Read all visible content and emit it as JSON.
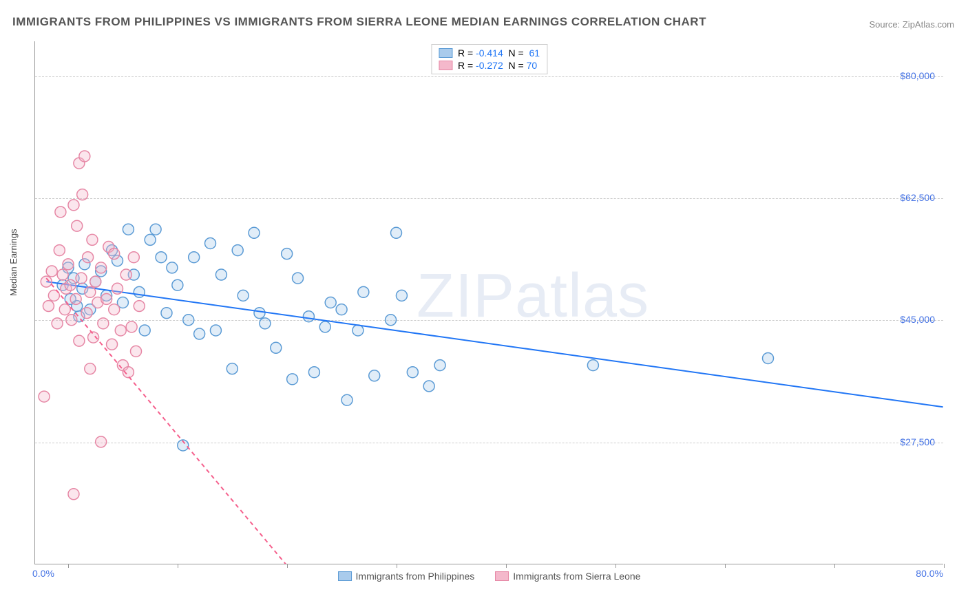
{
  "title": "IMMIGRANTS FROM PHILIPPINES VS IMMIGRANTS FROM SIERRA LEONE MEDIAN EARNINGS CORRELATION CHART",
  "source": "Source: ZipAtlas.com",
  "y_axis_label": "Median Earnings",
  "watermark": "ZIPatlas",
  "chart": {
    "type": "scatter",
    "x_min": -3,
    "x_max": 80,
    "x_label_min": "0.0%",
    "x_label_max": "80.0%",
    "y_min": 10000,
    "y_max": 85000,
    "y_ticks": [
      27500,
      45000,
      62500,
      80000
    ],
    "y_tick_labels": [
      "$27,500",
      "$45,000",
      "$62,500",
      "$80,000"
    ],
    "x_ticks": [
      0,
      10,
      20,
      30,
      40,
      50,
      60,
      70,
      80
    ],
    "gridline_color": "#cccccc",
    "background_color": "#ffffff",
    "axis_color": "#999999",
    "tick_label_color": "#4472e4",
    "marker_radius": 8,
    "marker_stroke_width": 1.5,
    "marker_fill_opacity": 0.35,
    "trendline_width": 2
  },
  "series": [
    {
      "name": "Immigrants from Philippines",
      "color_stroke": "#5b9bd5",
      "color_fill": "#a9cbec",
      "trendline_color": "#2176f5",
      "trendline_dash": "none",
      "R": "-0.414",
      "N": "61",
      "trendline": {
        "x1": -2,
        "y1": 50500,
        "x2": 80,
        "y2": 32500
      },
      "points": [
        [
          -0.5,
          50000
        ],
        [
          0,
          52500
        ],
        [
          0.2,
          48000
        ],
        [
          0.5,
          51000
        ],
        [
          0.8,
          47000
        ],
        [
          1,
          45500
        ],
        [
          1.3,
          49500
        ],
        [
          1.5,
          53000
        ],
        [
          2,
          46500
        ],
        [
          2.5,
          50500
        ],
        [
          3,
          52000
        ],
        [
          3.5,
          48500
        ],
        [
          4,
          55000
        ],
        [
          4.5,
          53500
        ],
        [
          5,
          47500
        ],
        [
          5.5,
          58000
        ],
        [
          6,
          51500
        ],
        [
          6.5,
          49000
        ],
        [
          7,
          43500
        ],
        [
          7.5,
          56500
        ],
        [
          8,
          58000
        ],
        [
          8.5,
          54000
        ],
        [
          9,
          46000
        ],
        [
          9.5,
          52500
        ],
        [
          10,
          50000
        ],
        [
          10.5,
          27000
        ],
        [
          11,
          45000
        ],
        [
          11.5,
          54000
        ],
        [
          12,
          43000
        ],
        [
          13,
          56000
        ],
        [
          13.5,
          43500
        ],
        [
          14,
          51500
        ],
        [
          15,
          38000
        ],
        [
          15.5,
          55000
        ],
        [
          16,
          48500
        ],
        [
          17,
          57500
        ],
        [
          17.5,
          46000
        ],
        [
          18,
          44500
        ],
        [
          19,
          41000
        ],
        [
          20,
          54500
        ],
        [
          20.5,
          36500
        ],
        [
          21,
          51000
        ],
        [
          22,
          45500
        ],
        [
          22.5,
          37500
        ],
        [
          23.5,
          44000
        ],
        [
          24,
          47500
        ],
        [
          25,
          46500
        ],
        [
          25.5,
          33500
        ],
        [
          26.5,
          43500
        ],
        [
          27,
          49000
        ],
        [
          28,
          37000
        ],
        [
          29.5,
          45000
        ],
        [
          30,
          57500
        ],
        [
          30.5,
          48500
        ],
        [
          31.5,
          37500
        ],
        [
          33,
          35500
        ],
        [
          34,
          38500
        ],
        [
          48,
          38500
        ],
        [
          64,
          39500
        ]
      ]
    },
    {
      "name": "Immigrants from Sierra Leone",
      "color_stroke": "#e687a5",
      "color_fill": "#f4b8cb",
      "trendline_color": "#f55f8c",
      "trendline_dash": "6,5",
      "R": "-0.272",
      "N": "70",
      "trendline": {
        "x1": -2,
        "y1": 51000,
        "x2": 22,
        "y2": 6000
      },
      "points": [
        [
          -2,
          50500
        ],
        [
          -1.8,
          47000
        ],
        [
          -1.5,
          52000
        ],
        [
          -1.3,
          48500
        ],
        [
          -1,
          44500
        ],
        [
          -0.8,
          55000
        ],
        [
          -0.7,
          60500
        ],
        [
          -0.5,
          51500
        ],
        [
          -0.3,
          46500
        ],
        [
          -0.2,
          49500
        ],
        [
          0,
          53000
        ],
        [
          0.2,
          50000
        ],
        [
          0.3,
          45000
        ],
        [
          0.5,
          61500
        ],
        [
          0.7,
          48000
        ],
        [
          0.8,
          58500
        ],
        [
          1,
          67500
        ],
        [
          1.2,
          51000
        ],
        [
          1.3,
          63000
        ],
        [
          1.5,
          68500
        ],
        [
          1.7,
          46000
        ],
        [
          1.8,
          54000
        ],
        [
          2,
          49000
        ],
        [
          2.2,
          56500
        ],
        [
          2.3,
          42500
        ],
        [
          2.5,
          50500
        ],
        [
          2.7,
          47500
        ],
        [
          3,
          52500
        ],
        [
          3.2,
          44500
        ],
        [
          3.5,
          48000
        ],
        [
          3.7,
          55500
        ],
        [
          4,
          41500
        ],
        [
          4.2,
          46500
        ],
        [
          4.5,
          49500
        ],
        [
          4.8,
          43500
        ],
        [
          5,
          38500
        ],
        [
          5.3,
          51500
        ],
        [
          5.5,
          37500
        ],
        [
          5.8,
          44000
        ],
        [
          6,
          54000
        ],
        [
          6.2,
          40500
        ],
        [
          6.5,
          47000
        ],
        [
          -2.2,
          34000
        ],
        [
          0.5,
          20000
        ],
        [
          3,
          27500
        ],
        [
          4.2,
          54500
        ],
        [
          1,
          42000
        ],
        [
          2,
          38000
        ]
      ]
    }
  ],
  "legend_bottom": [
    {
      "swatch_fill": "#a9cbec",
      "swatch_stroke": "#5b9bd5",
      "label": "Immigrants from Philippines"
    },
    {
      "swatch_fill": "#f4b8cb",
      "swatch_stroke": "#e687a5",
      "label": "Immigrants from Sierra Leone"
    }
  ]
}
